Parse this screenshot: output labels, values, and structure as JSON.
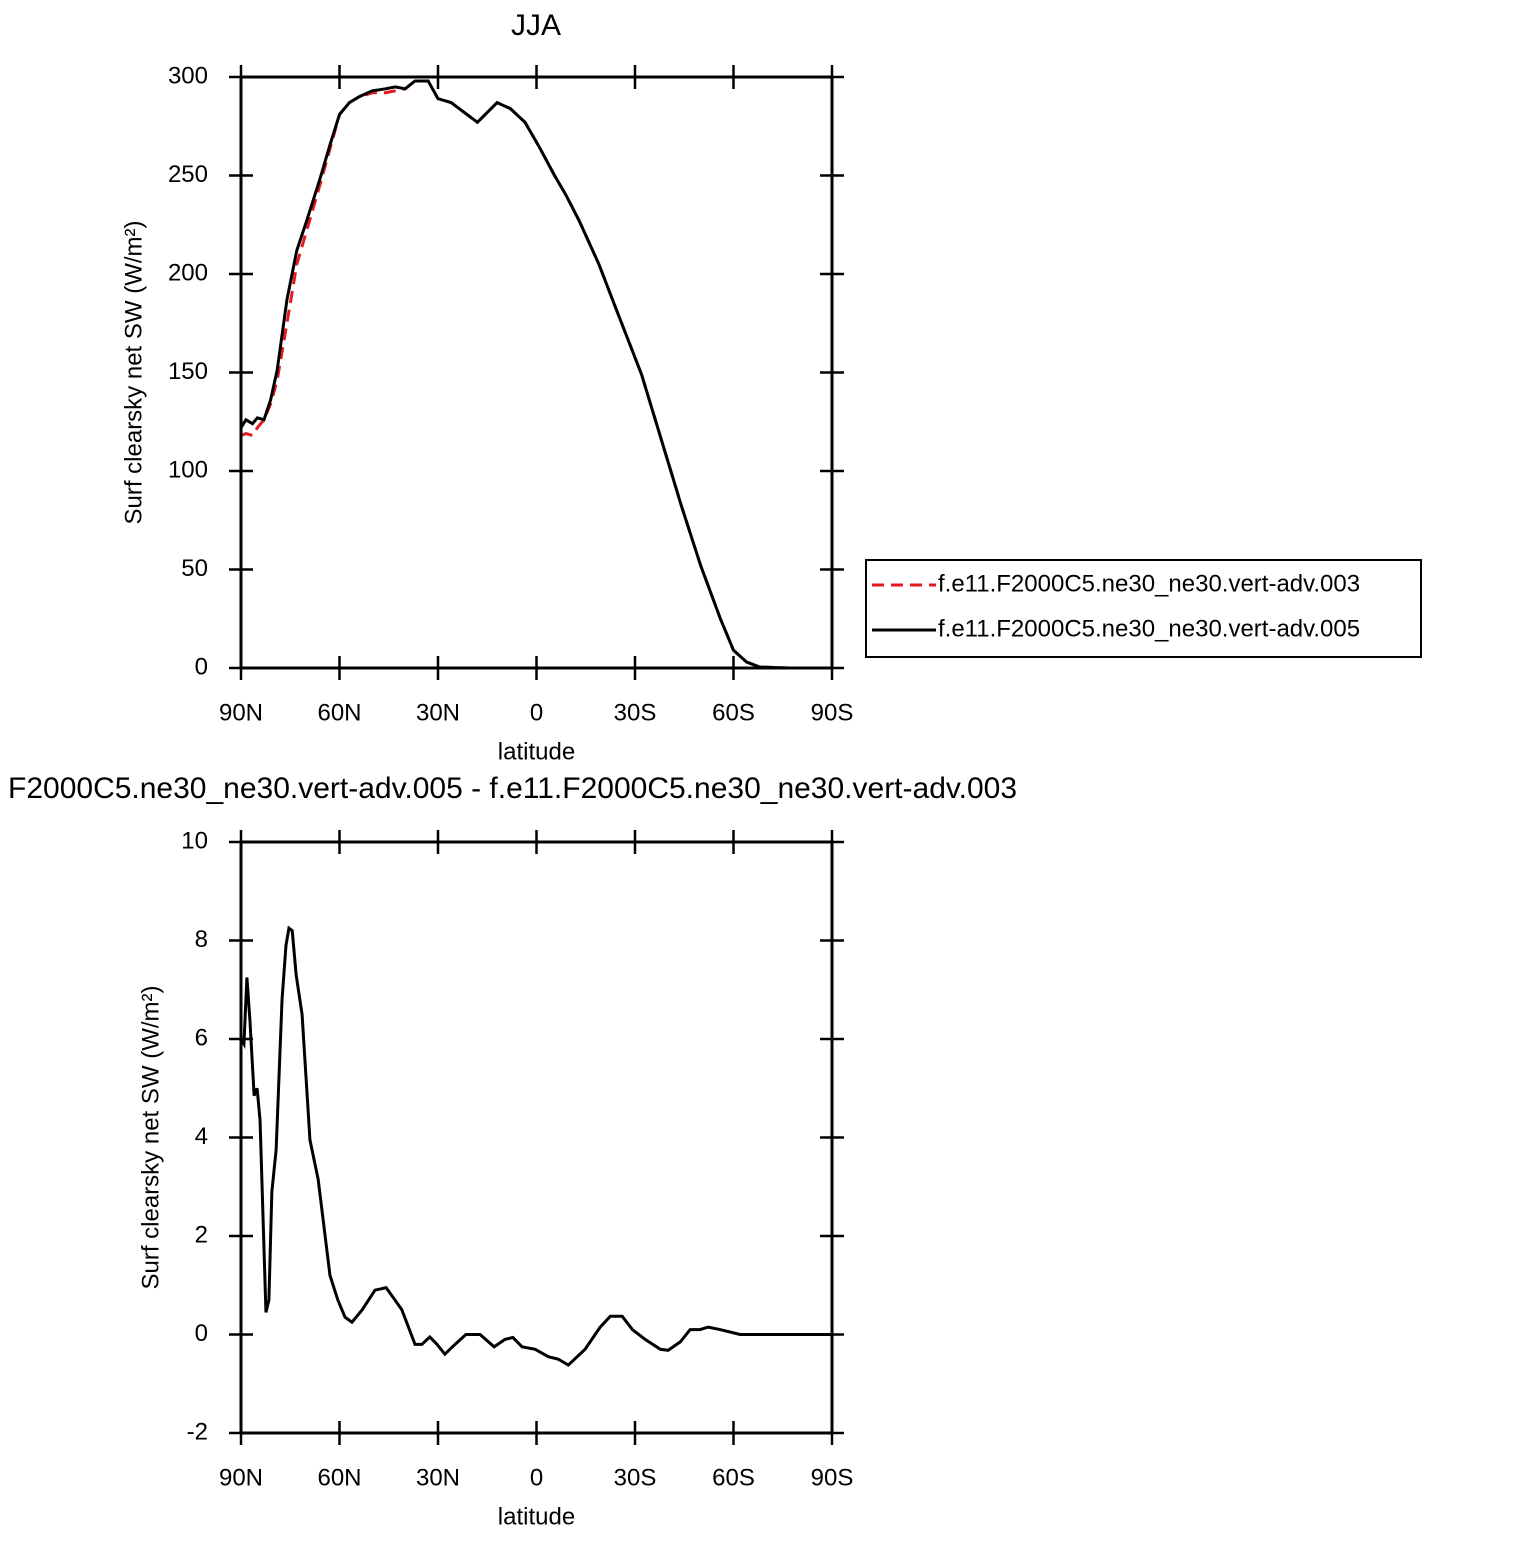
{
  "chart_data": [
    {
      "type": "line",
      "title": "JJA",
      "xlabel": "latitude",
      "ylabel": "Surf clearsky net SW (W/m²)",
      "x": [
        90,
        88.5,
        86.5,
        85,
        83,
        81,
        79,
        76,
        73,
        70,
        66,
        63,
        60,
        57,
        54,
        50,
        46,
        43,
        40,
        37,
        33,
        30,
        26,
        22,
        18,
        15,
        12,
        8,
        3.5,
        -1,
        -5.5,
        -9,
        -13,
        -19,
        -25,
        -32,
        -38,
        -44,
        -50,
        -56,
        -60,
        -64,
        -68,
        -77,
        -90
      ],
      "series": [
        {
          "name": "f.e11.F2000C5.ne30_ne30.vert-adv.003",
          "color": "#e41a1c",
          "style": "dashed",
          "values": [
            118,
            119,
            118,
            122,
            126,
            134,
            146,
            175,
            205,
            222,
            245,
            263,
            281,
            287,
            290,
            292,
            292,
            293,
            294,
            298,
            298,
            289,
            287,
            282,
            277,
            282,
            287,
            284,
            277,
            264,
            250,
            240,
            227,
            205,
            179,
            149,
            116,
            83,
            52,
            25,
            9,
            3,
            0.5,
            0,
            0
          ]
        },
        {
          "name": "f.e11.F2000C5.ne30_ne30.vert-adv.005",
          "color": "#000000",
          "style": "solid",
          "values": [
            122,
            126,
            124,
            127,
            126,
            136,
            151,
            187,
            212,
            227,
            248,
            265,
            281,
            287,
            290,
            293,
            294,
            295,
            294,
            298,
            298,
            289,
            287,
            282,
            277,
            282,
            287,
            284,
            277,
            264,
            250,
            240,
            227,
            205,
            179,
            149,
            116,
            83,
            52,
            25,
            9,
            3,
            0.5,
            0,
            0
          ]
        }
      ],
      "xlim": [
        90,
        -90
      ],
      "xticks": [
        {
          "value": 90,
          "label": "90N"
        },
        {
          "value": 60,
          "label": "60N"
        },
        {
          "value": 30,
          "label": "30N"
        },
        0,
        {
          "value": -30,
          "label": "30S"
        },
        {
          "value": -60,
          "label": "60S"
        },
        {
          "value": -90,
          "label": "90S"
        }
      ],
      "ylim": [
        0,
        300
      ],
      "yticks": [
        0,
        50,
        100,
        150,
        200,
        250,
        300
      ],
      "legend": "right"
    },
    {
      "type": "line",
      "title": "F2000C5.ne30_ne30.vert-adv.005 - f.e11.F2000C5.ne30_ne30.vert-adv.003",
      "xlabel": "latitude",
      "ylabel": "Surf clearsky net SW (W/m²)",
      "x": [
        90,
        89.1,
        88.2,
        87.3,
        86.0,
        85.1,
        84.2,
        82.4,
        81.5,
        80.6,
        79.3,
        77.5,
        76.3,
        75.4,
        74.4,
        73.2,
        71.4,
        69.0,
        66.5,
        62.9,
        60.5,
        58.3,
        56.2,
        53.1,
        49.2,
        45.8,
        43.1,
        41.0,
        37.0,
        34.9,
        32.5,
        30.3,
        27.9,
        24.8,
        21.5,
        17.2,
        12.9,
        9.6,
        7.2,
        4.4,
        0.4,
        -3.6,
        -6.6,
        -9.7,
        -14.8,
        -19.4,
        -22.5,
        -26.1,
        -29.2,
        -33.1,
        -37.7,
        -40.1,
        -43.8,
        -46.8,
        -49.8,
        -52.3,
        -55.9,
        -62.0,
        -90
      ],
      "values": [
        6.0,
        5.9,
        7.25,
        6.4,
        4.85,
        5.0,
        4.35,
        0.45,
        0.7,
        2.9,
        3.75,
        6.8,
        7.9,
        8.25,
        8.2,
        7.3,
        6.5,
        3.95,
        3.15,
        1.2,
        0.7,
        0.35,
        0.25,
        0.5,
        0.9,
        0.95,
        0.7,
        0.5,
        -0.2,
        -0.2,
        -0.05,
        -0.2,
        -0.4,
        -0.2,
        0.0,
        0.0,
        -0.25,
        -0.1,
        -0.06,
        -0.25,
        -0.3,
        -0.45,
        -0.5,
        -0.62,
        -0.3,
        0.15,
        0.37,
        0.37,
        0.1,
        -0.1,
        -0.3,
        -0.32,
        -0.15,
        0.1,
        0.1,
        0.15,
        0.1,
        0.0,
        0.0
      ],
      "color": "#000000",
      "xlim": [
        90,
        -90
      ],
      "xticks": [
        {
          "value": 90,
          "label": "90N"
        },
        {
          "value": 60,
          "label": "60N"
        },
        {
          "value": 30,
          "label": "30N"
        },
        0,
        {
          "value": -30,
          "label": "30S"
        },
        {
          "value": -60,
          "label": "60S"
        },
        {
          "value": -90,
          "label": "90S"
        }
      ],
      "ylim": [
        -2,
        10
      ],
      "yticks": [
        -2,
        0,
        2,
        4,
        6,
        8,
        10
      ]
    }
  ]
}
